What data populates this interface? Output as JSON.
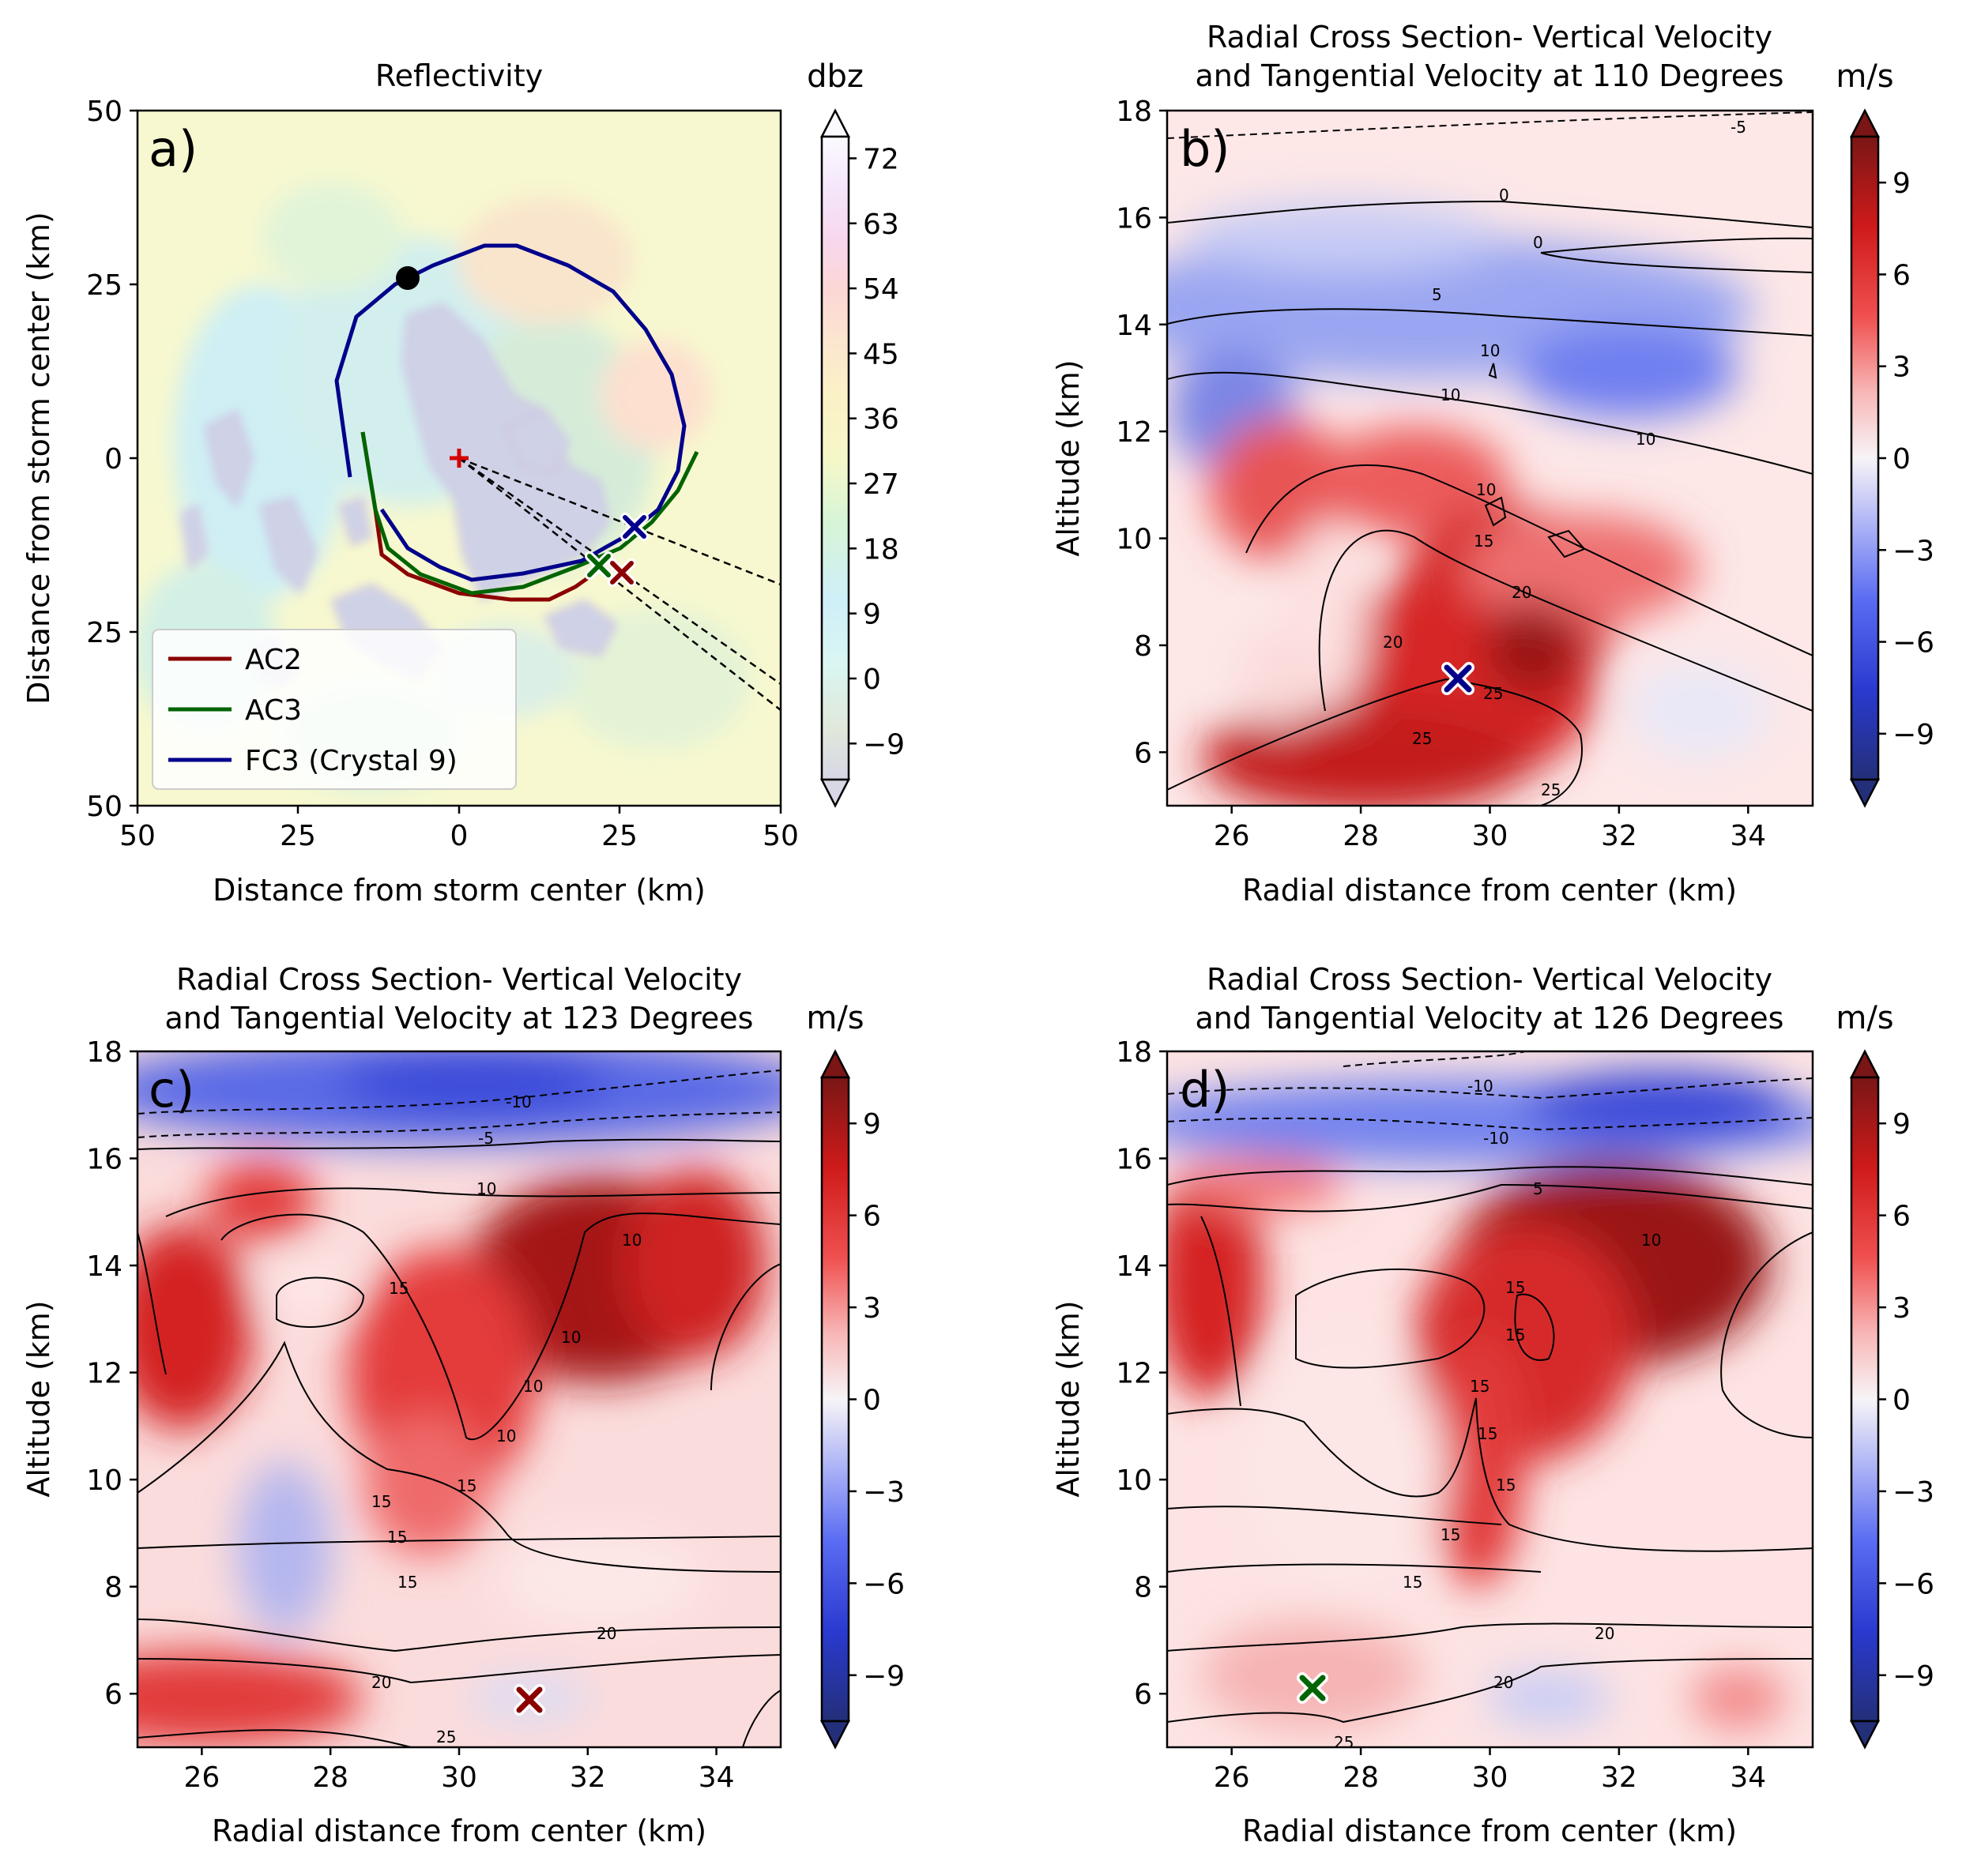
{
  "chart_data": [
    {
      "panel": "a)",
      "type": "contour",
      "title": "Reflectivity",
      "xlabel": "Distance from storm center (km)",
      "ylabel": "Distance from storm center (km)",
      "xticks": [
        "50",
        "25",
        "0",
        "25",
        "50"
      ],
      "yticks": [
        "50",
        "25",
        "0",
        "25",
        "50"
      ],
      "xlim": [
        -50,
        50
      ],
      "ylim": [
        -50,
        50
      ],
      "colorbar": {
        "unit": "dbz",
        "ticks": [
          "72",
          "63",
          "54",
          "45",
          "36",
          "27",
          "18",
          "9",
          "0",
          "−9"
        ],
        "range": [
          -14,
          75
        ],
        "extend": "both"
      },
      "legend": {
        "position": "lower-left",
        "entries": [
          "AC2",
          "AC3",
          "FC3 (Crystal 9)"
        ]
      },
      "tracks": [
        {
          "name": "AC2",
          "color": "#8b0000",
          "points": [
            [
              -15,
              4
            ],
            [
              -13,
              -8
            ],
            [
              -12,
              -15
            ],
            [
              -8,
              -18
            ],
            [
              0,
              -21
            ],
            [
              8,
              -22
            ],
            [
              14,
              -22
            ],
            [
              18,
              -20
            ],
            [
              21,
              -18
            ],
            [
              23,
              -16
            ]
          ]
        },
        {
          "name": "AC3",
          "color": "#006400",
          "points": [
            [
              -15,
              4
            ],
            [
              -13,
              -8
            ],
            [
              -11,
              -14
            ],
            [
              -6,
              -18
            ],
            [
              2,
              -21
            ],
            [
              10,
              -20
            ],
            [
              18,
              -17
            ],
            [
              25,
              -14
            ],
            [
              30,
              -10
            ],
            [
              34,
              -5
            ],
            [
              37,
              1
            ]
          ]
        },
        {
          "name": "FC3 (Crystal 9)",
          "color": "#00008b",
          "points": [
            [
              -17,
              -3
            ],
            [
              -19,
              12
            ],
            [
              -16,
              22
            ],
            [
              -10,
              27
            ],
            [
              -4,
              30
            ],
            [
              4,
              33
            ],
            [
              9,
              33
            ],
            [
              17,
              30
            ],
            [
              24,
              26
            ],
            [
              29,
              20
            ],
            [
              33,
              13
            ],
            [
              35,
              5
            ],
            [
              34,
              -2
            ],
            [
              31,
              -8
            ],
            [
              26,
              -12
            ],
            [
              19,
              -16
            ],
            [
              10,
              -18
            ],
            [
              2,
              -19
            ],
            [
              -3,
              -17
            ],
            [
              -8,
              -14
            ],
            [
              -12,
              -8
            ]
          ]
        }
      ],
      "markers": [
        {
          "shape": "circle",
          "color": "#000000",
          "x": -8,
          "y": 28
        },
        {
          "shape": "plus",
          "color": "#d40000",
          "x": 0,
          "y": 0
        },
        {
          "shape": "x",
          "color": "#00008b",
          "x": 27.5,
          "y": -10.5
        },
        {
          "shape": "x",
          "color": "#006400",
          "x": 22,
          "y": -16
        },
        {
          "shape": "x",
          "color": "#8b0000",
          "x": 25.5,
          "y": -17
        }
      ],
      "dashed_rays": [
        [
          50,
          -18
        ],
        [
          50,
          -33
        ],
        [
          50,
          -37
        ]
      ]
    },
    {
      "panel": "b)",
      "type": "contour",
      "title": "Radial Cross Section- Vertical Velocity\nand Tangential Velocity at 110 Degrees",
      "xlabel": "Radial distance from center (km)",
      "ylabel": "Altitude (km)",
      "xticks": [
        "26",
        "28",
        "30",
        "32",
        "34"
      ],
      "yticks": [
        "6",
        "8",
        "10",
        "12",
        "14",
        "16",
        "18"
      ],
      "xlim": [
        25,
        35
      ],
      "ylim": [
        5,
        18
      ],
      "colorbar": {
        "unit": "m/s",
        "ticks": [
          "9",
          "6",
          "3",
          "0",
          "−3",
          "−6",
          "−9"
        ],
        "range": [
          -10.5,
          10.5
        ],
        "extend": "both"
      },
      "contour_labels": [
        "-5",
        "0",
        "0",
        "5",
        "10",
        "10",
        "10",
        "10",
        "15",
        "20",
        "20",
        "25",
        "25",
        "25"
      ],
      "marker": {
        "shape": "x",
        "color": "#00008b",
        "x": 29.5,
        "y": 7.35
      }
    },
    {
      "panel": "c)",
      "type": "contour",
      "title": "Radial Cross Section- Vertical Velocity\nand Tangential Velocity at 123 Degrees",
      "xlabel": "Radial distance from center (km)",
      "ylabel": "Altitude (km)",
      "xticks": [
        "26",
        "28",
        "30",
        "32",
        "34"
      ],
      "yticks": [
        "6",
        "8",
        "10",
        "12",
        "14",
        "16",
        "18"
      ],
      "xlim": [
        25,
        35
      ],
      "ylim": [
        5,
        18
      ],
      "colorbar": {
        "unit": "m/s",
        "ticks": [
          "9",
          "6",
          "3",
          "0",
          "−3",
          "−6",
          "−9"
        ],
        "range": [
          -10.5,
          10.5
        ],
        "extend": "both"
      },
      "contour_labels": [
        "-10",
        "-5",
        "10",
        "10",
        "10",
        "10",
        "10",
        "15",
        "15",
        "15",
        "15",
        "15",
        "20",
        "20",
        "25"
      ],
      "marker": {
        "shape": "x",
        "color": "#8b0000",
        "x": 31.1,
        "y": 5.9
      }
    },
    {
      "panel": "d)",
      "type": "contour",
      "title": "Radial Cross Section- Vertical Velocity\nand Tangential Velocity at 126 Degrees",
      "xlabel": "Radial distance from center (km)",
      "ylabel": "Altitude (km)",
      "xticks": [
        "26",
        "28",
        "30",
        "32",
        "34"
      ],
      "yticks": [
        "6",
        "8",
        "10",
        "12",
        "14",
        "16",
        "18"
      ],
      "xlim": [
        25,
        35
      ],
      "ylim": [
        5,
        18
      ],
      "colorbar": {
        "unit": "m/s",
        "ticks": [
          "9",
          "6",
          "3",
          "0",
          "−3",
          "−6",
          "−9"
        ],
        "range": [
          -10.5,
          10.5
        ],
        "extend": "both"
      },
      "contour_labels": [
        "-10",
        "-10",
        "5",
        "10",
        "15",
        "15",
        "15",
        "15",
        "15",
        "15",
        "15",
        "20",
        "20",
        "25"
      ],
      "marker": {
        "shape": "x",
        "color": "#006400",
        "x": 27.2,
        "y": 6.1
      }
    }
  ]
}
